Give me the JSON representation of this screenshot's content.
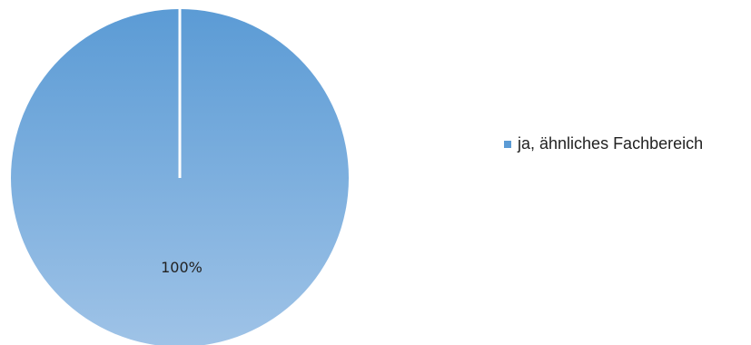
{
  "chart_data": {
    "type": "pie",
    "title": "",
    "series": [
      {
        "name": "ja, ähnliches Fachbereich",
        "value": 100,
        "label": "100%",
        "color": "#5b9bd5",
        "color_light": "#9fc3e7"
      }
    ],
    "legend_position": "right"
  }
}
